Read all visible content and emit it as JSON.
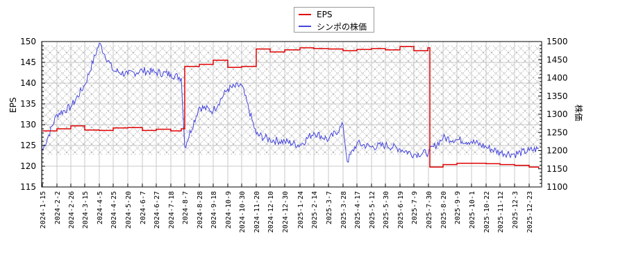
{
  "legend": {
    "items": [
      {
        "label": "EPS",
        "color": "#e00000"
      },
      {
        "label": "シンポの株価",
        "color": "#4444dd"
      }
    ]
  },
  "axes": {
    "left_label": "EPS",
    "right_label": "株価",
    "left_ticks": [
      "150",
      "145",
      "140",
      "135",
      "130",
      "125",
      "120",
      "115"
    ],
    "right_ticks": [
      "1500",
      "1450",
      "1400",
      "1350",
      "1300",
      "1250",
      "1200",
      "1150",
      "1100"
    ]
  },
  "chart_data": {
    "type": "line",
    "title": "",
    "xlabel": "",
    "ylabel": "EPS",
    "ylabel_right": "株価",
    "ylim": [
      115,
      150
    ],
    "ylim_right": [
      1100,
      1500
    ],
    "grid": true,
    "legend_position": "top-center",
    "x_ticks": [
      "2024-1-15",
      "2024-2-2",
      "2024-2-26",
      "2024-3-15",
      "2024-4-5",
      "2024-4-25",
      "2024-5-20",
      "2024-6-7",
      "2024-6-27",
      "2024-7-18",
      "2024-8-7",
      "2024-8-28",
      "2024-9-18",
      "2024-10-9",
      "2024-10-30",
      "2024-11-20",
      "2024-12-10",
      "2024-12-30",
      "2025-1-24",
      "2025-2-14",
      "2025-3-7",
      "2025-3-28",
      "2025-4-17",
      "2025-5-12",
      "2025-5-30",
      "2025-6-19",
      "2025-7-9",
      "2025-7-30",
      "2025-8-20",
      "2025-9-9",
      "2025-10-1",
      "2025-10-22",
      "2025-11-12",
      "2025-12-3",
      "2025-12-23"
    ],
    "series": [
      {
        "name": "EPS",
        "axis": "left",
        "color": "#e00000",
        "x": [
          "2024-1-15",
          "2024-2-2",
          "2024-2-26",
          "2024-3-15",
          "2024-4-5",
          "2024-4-25",
          "2024-5-20",
          "2024-6-7",
          "2024-6-27",
          "2024-7-18",
          "2024-8-2",
          "2024-8-7",
          "2024-8-28",
          "2024-9-18",
          "2024-10-9",
          "2024-10-30",
          "2024-11-20",
          "2024-12-10",
          "2024-12-30",
          "2025-1-24",
          "2025-2-14",
          "2025-3-7",
          "2025-3-28",
          "2025-4-17",
          "2025-5-12",
          "2025-5-30",
          "2025-6-19",
          "2025-7-9",
          "2025-7-29",
          "2025-8-1",
          "2025-8-20",
          "2025-9-9",
          "2025-10-1",
          "2025-10-22",
          "2025-11-12",
          "2025-12-3",
          "2025-12-23",
          "2026-1-5"
        ],
        "values": [
          128.5,
          129.0,
          129.7,
          128.7,
          128.6,
          129.2,
          129.3,
          128.6,
          128.9,
          128.5,
          129.0,
          144.0,
          144.5,
          145.5,
          143.8,
          144.0,
          148.2,
          147.5,
          148.0,
          148.5,
          148.3,
          148.2,
          147.8,
          148.1,
          148.3,
          148.0,
          148.8,
          147.8,
          148.5,
          119.8,
          120.4,
          120.7,
          120.7,
          120.6,
          120.4,
          120.2,
          119.8,
          119.5
        ]
      },
      {
        "name": "シンポの株価",
        "axis": "right",
        "color": "#4444dd",
        "x": [
          "2024-1-15",
          "2024-2-2",
          "2024-2-26",
          "2024-3-15",
          "2024-4-5",
          "2024-4-25",
          "2024-5-20",
          "2024-6-7",
          "2024-6-27",
          "2024-7-18",
          "2024-8-2",
          "2024-8-7",
          "2024-8-28",
          "2024-9-18",
          "2024-10-9",
          "2024-10-30",
          "2024-11-20",
          "2024-12-10",
          "2024-12-30",
          "2025-1-24",
          "2025-2-14",
          "2025-3-7",
          "2025-3-28",
          "2025-4-3",
          "2025-4-17",
          "2025-5-12",
          "2025-5-30",
          "2025-6-19",
          "2025-7-9",
          "2025-7-30",
          "2025-8-20",
          "2025-9-9",
          "2025-10-1",
          "2025-10-22",
          "2025-11-12",
          "2025-12-3",
          "2025-12-23",
          "2026-1-5"
        ],
        "values": [
          1200,
          1300,
          1320,
          1380,
          1495,
          1420,
          1410,
          1420,
          1415,
          1410,
          1400,
          1210,
          1320,
          1310,
          1370,
          1380,
          1245,
          1230,
          1225,
          1215,
          1250,
          1230,
          1270,
          1170,
          1220,
          1210,
          1215,
          1205,
          1190,
          1195,
          1235,
          1230,
          1225,
          1210,
          1195,
          1190,
          1200,
          1205
        ]
      }
    ]
  }
}
